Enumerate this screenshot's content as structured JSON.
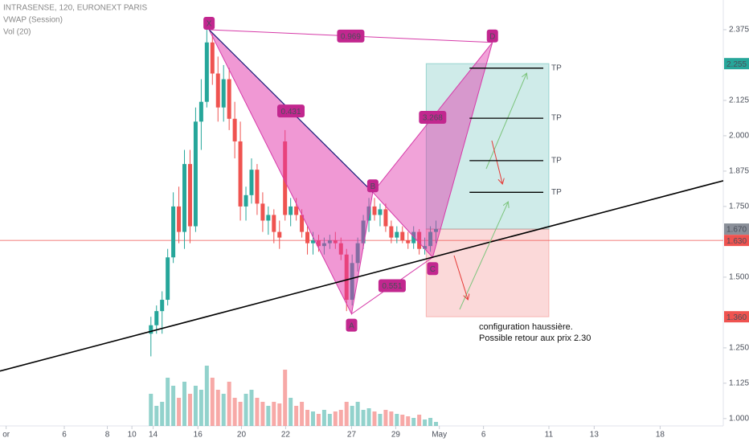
{
  "chart_data": {
    "type": "candlestick",
    "title": "INTRASENSE, 120, EURONEXT PARIS",
    "indicators": [
      "VWAP (Session)",
      "Vol (20)"
    ],
    "x": [
      27,
      28,
      29,
      30,
      31,
      32,
      33,
      34,
      35,
      36,
      37,
      38,
      39,
      40,
      41,
      42,
      43,
      44,
      45,
      46,
      47,
      48,
      49,
      50,
      51,
      52,
      53,
      54,
      55,
      56,
      57,
      58,
      59,
      60,
      61,
      62,
      63,
      64,
      65,
      66,
      67,
      68,
      69,
      70,
      71,
      72,
      73,
      74,
      75,
      76,
      77,
      78
    ],
    "open": [
      1.3,
      1.33,
      1.38,
      1.42,
      1.57,
      1.75,
      1.66,
      1.9,
      1.68,
      2.05,
      2.12,
      2.33,
      2.22,
      2.1,
      2.2,
      2.06,
      1.98,
      1.75,
      1.79,
      1.88,
      1.76,
      1.7,
      1.72,
      1.66,
      1.98,
      1.72,
      1.75,
      1.72,
      1.66,
      1.62,
      1.63,
      1.61,
      1.62,
      1.63,
      1.62,
      1.58,
      1.42,
      1.55,
      1.62,
      1.7,
      1.75,
      1.72,
      1.74,
      1.68,
      1.64,
      1.66,
      1.63,
      1.62,
      1.66,
      1.6,
      1.61,
      1.66
    ],
    "high": [
      1.36,
      1.4,
      1.45,
      1.6,
      1.8,
      1.82,
      1.95,
      1.95,
      2.1,
      2.2,
      2.4,
      2.36,
      2.28,
      2.25,
      2.24,
      2.12,
      2.05,
      1.82,
      1.92,
      1.9,
      1.8,
      1.75,
      1.74,
      1.7,
      2.02,
      1.78,
      1.78,
      1.74,
      1.68,
      1.66,
      1.65,
      1.64,
      1.65,
      1.66,
      1.64,
      1.6,
      1.58,
      1.64,
      1.72,
      1.78,
      1.78,
      1.76,
      1.76,
      1.7,
      1.68,
      1.68,
      1.66,
      1.68,
      1.67,
      1.64,
      1.68,
      1.7
    ],
    "low": [
      1.22,
      1.3,
      1.3,
      1.4,
      1.55,
      1.62,
      1.6,
      1.62,
      1.66,
      1.95,
      2.1,
      2.18,
      2.05,
      2.05,
      2.02,
      1.92,
      1.7,
      1.7,
      1.76,
      1.72,
      1.66,
      1.65,
      1.62,
      1.6,
      1.7,
      1.68,
      1.7,
      1.64,
      1.58,
      1.58,
      1.59,
      1.58,
      1.6,
      1.6,
      1.56,
      1.38,
      1.4,
      1.52,
      1.6,
      1.66,
      1.7,
      1.68,
      1.66,
      1.62,
      1.62,
      1.62,
      1.6,
      1.6,
      1.58,
      1.58,
      1.59,
      1.62
    ],
    "close": [
      1.33,
      1.38,
      1.42,
      1.57,
      1.75,
      1.66,
      1.9,
      1.68,
      2.05,
      2.12,
      2.33,
      2.22,
      2.1,
      2.2,
      2.06,
      1.98,
      1.75,
      1.79,
      1.88,
      1.76,
      1.7,
      1.72,
      1.66,
      1.64,
      1.72,
      1.75,
      1.72,
      1.66,
      1.62,
      1.63,
      1.61,
      1.62,
      1.63,
      1.62,
      1.58,
      1.42,
      1.55,
      1.62,
      1.7,
      1.75,
      1.72,
      1.74,
      1.68,
      1.64,
      1.66,
      1.63,
      1.62,
      1.66,
      1.6,
      1.61,
      1.66,
      1.67
    ],
    "volume": [
      40,
      25,
      30,
      60,
      50,
      35,
      55,
      40,
      50,
      45,
      75,
      60,
      45,
      40,
      55,
      35,
      30,
      40,
      45,
      35,
      30,
      25,
      30,
      28,
      70,
      35,
      25,
      30,
      20,
      18,
      15,
      20,
      15,
      18,
      20,
      30,
      25,
      30,
      20,
      22,
      18,
      15,
      20,
      18,
      15,
      14,
      12,
      10,
      14,
      8,
      10,
      5
    ],
    "up_color": "#26a69a",
    "down_color": "#ef5350",
    "xlim": [
      0,
      129.4
    ],
    "xticks": [
      {
        "value": 1.1,
        "label": "or"
      },
      {
        "value": 11.5,
        "label": "6"
      },
      {
        "value": 19.2,
        "label": "8"
      },
      {
        "value": 23.6,
        "label": "10"
      },
      {
        "value": 27.4,
        "label": "14"
      },
      {
        "value": 35.4,
        "label": "16"
      },
      {
        "value": 43.2,
        "label": "20"
      },
      {
        "value": 51.1,
        "label": "22"
      },
      {
        "value": 62.9,
        "label": "27"
      },
      {
        "value": 70.8,
        "label": "29"
      },
      {
        "value": 78.6,
        "label": "May"
      },
      {
        "value": 86.5,
        "label": "6"
      },
      {
        "value": 98.2,
        "label": "11"
      },
      {
        "value": 106.3,
        "label": "13"
      },
      {
        "value": 118.1,
        "label": "18"
      }
    ],
    "ylim": [
      0.974,
      2.48
    ],
    "yticks": [
      2.375,
      2.125,
      {
        "value": 2.0,
        "label": "2.000"
      },
      1.875,
      {
        "value": 1.75,
        "label": "1.750"
      },
      {
        "value": 1.5,
        "label": "1.500"
      },
      {
        "value": 1.25,
        "label": "1.250"
      },
      1.125,
      {
        "value": 1.0,
        "label": "1.000"
      }
    ],
    "volume_lim": [
      0,
      120
    ],
    "price_tags": [
      {
        "value": 2.255,
        "label": "2.255",
        "color": "#26a69a"
      },
      {
        "value": 1.67,
        "label": "1.670",
        "color": "#8a8f99"
      },
      {
        "value": 1.63,
        "label": "1.630",
        "color": "#ef5350"
      },
      {
        "value": 1.36,
        "label": "1.360",
        "color": "#ef5350"
      }
    ],
    "pattern": [
      {
        "label": "X",
        "x": 37.4,
        "y": 2.375
      },
      {
        "label": "A",
        "x": 62.9,
        "y": 1.37
      },
      {
        "label": "B",
        "x": 66.7,
        "y": 1.8
      },
      {
        "label": "C",
        "x": 77.4,
        "y": 1.57
      },
      {
        "label": "D",
        "x": 88.1,
        "y": 2.33
      }
    ],
    "ratios": [
      {
        "label": "0.969",
        "from": 0,
        "to": 4
      },
      {
        "label": "0.431",
        "from": 0,
        "to": 2
      },
      {
        "label": "3.268",
        "from": 2,
        "to": 4
      },
      {
        "label": "0.551",
        "from": 1,
        "to": 3
      }
    ],
    "position": {
      "x0": 76.25,
      "x1": 98.2,
      "entry": 1.67,
      "target": 2.255,
      "stop": 1.36
    },
    "targets": {
      "label": "TP",
      "x0": 84,
      "x1": 97.2,
      "levels": [
        2.239,
        2.062,
        1.912,
        1.8
      ]
    },
    "trendline": {
      "x": [
        0,
        129.4
      ],
      "y": [
        1.168,
        1.841
      ]
    },
    "annotation": [
      "configuration haussière.",
      "Possible retour aux prix 2.30"
    ]
  }
}
